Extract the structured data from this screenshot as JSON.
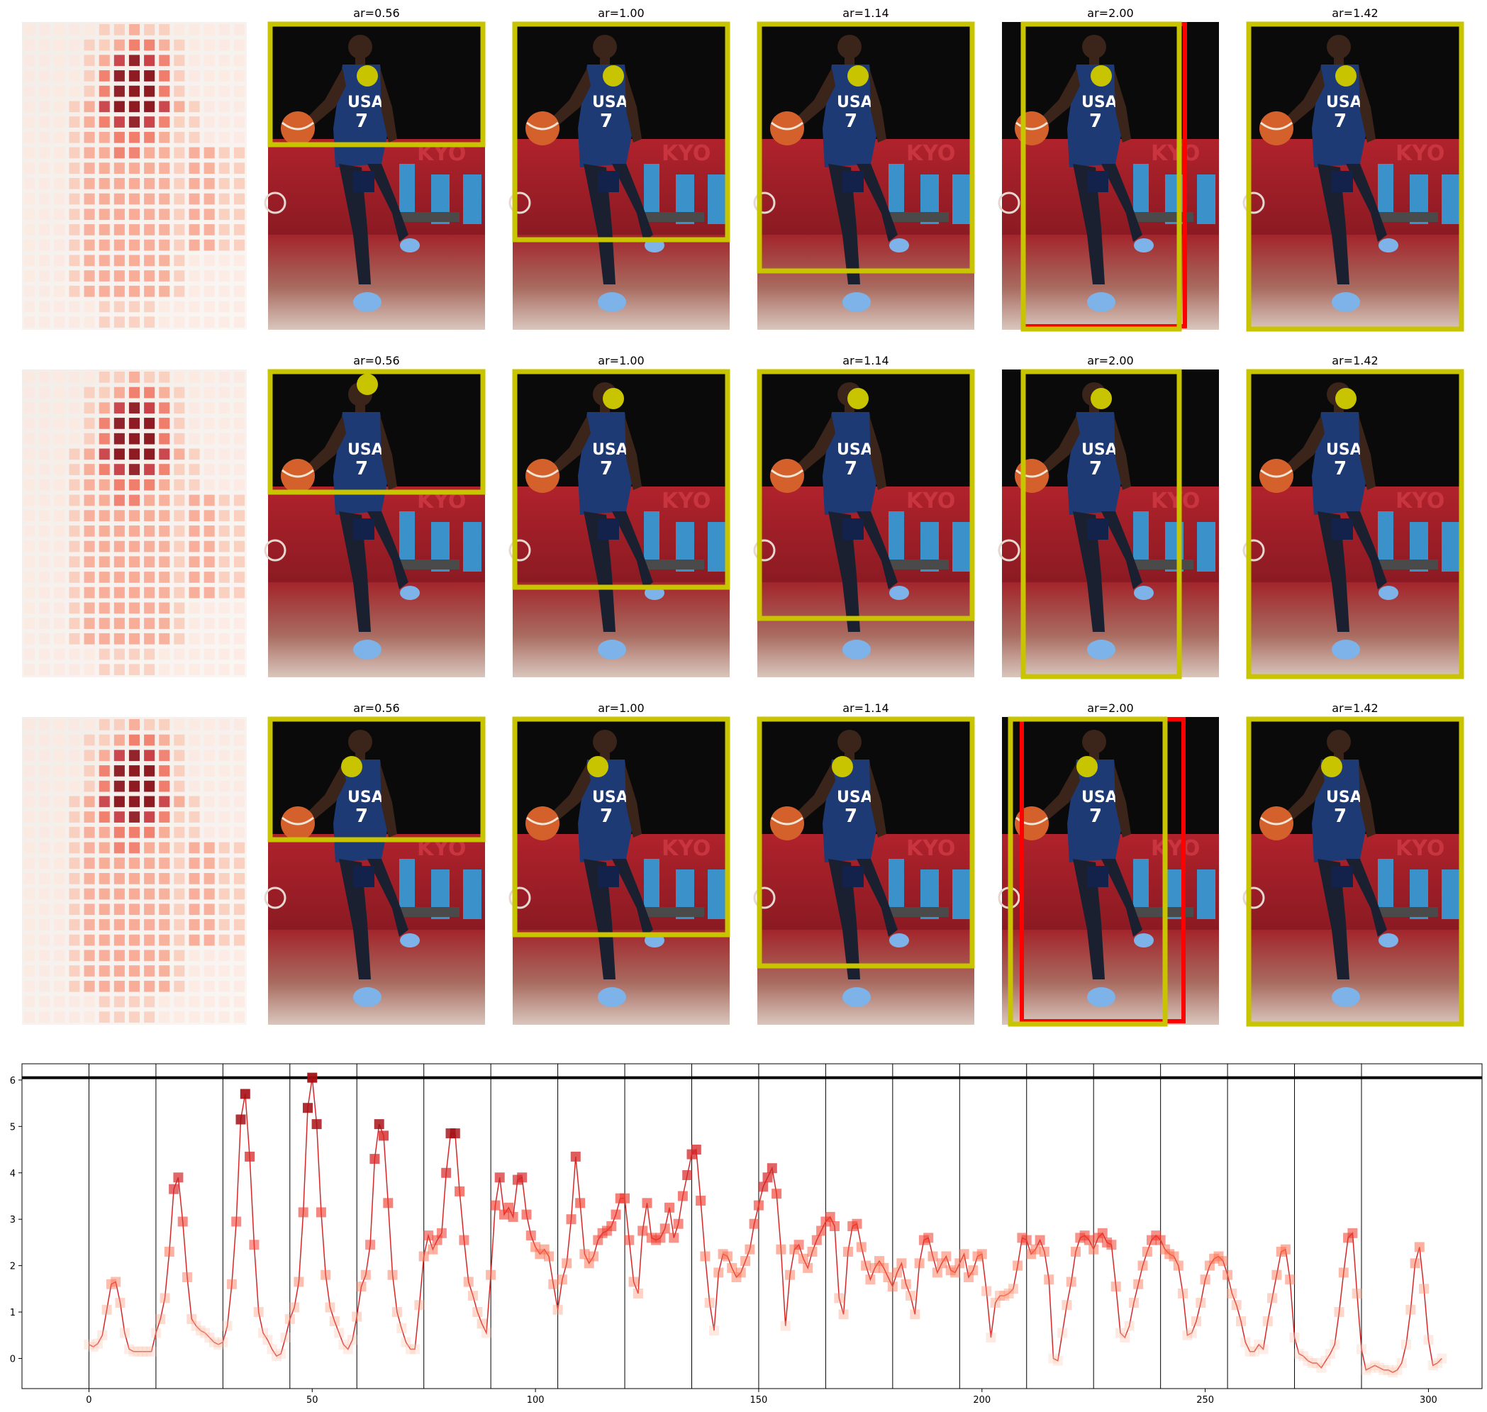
{
  "colors": {
    "box_yellow": "#c8c400",
    "box_red": "#ff0000",
    "line_red": "#d62728",
    "frame": "#000000"
  },
  "panels": {
    "rows": [
      {
        "heatmap": "attention-heatmap",
        "crops": [
          {
            "title": "ar=0.56",
            "box": "yellow"
          },
          {
            "title": "ar=1.00",
            "box": "yellow"
          },
          {
            "title": "ar=1.14",
            "box": "yellow"
          },
          {
            "title": "ar=2.00",
            "box": "yellow+red"
          },
          {
            "title": "ar=1.42",
            "box": "yellow"
          }
        ]
      },
      {
        "heatmap": "attention-heatmap",
        "crops": [
          {
            "title": "ar=0.56",
            "box": "yellow"
          },
          {
            "title": "ar=1.00",
            "box": "yellow"
          },
          {
            "title": "ar=1.14",
            "box": "yellow"
          },
          {
            "title": "ar=2.00",
            "box": "yellow"
          },
          {
            "title": "ar=1.42",
            "box": "yellow"
          }
        ]
      },
      {
        "heatmap": "attention-heatmap",
        "crops": [
          {
            "title": "ar=0.56",
            "box": "yellow"
          },
          {
            "title": "ar=1.00",
            "box": "yellow"
          },
          {
            "title": "ar=1.14",
            "box": "yellow"
          },
          {
            "title": "ar=2.00",
            "box": "yellow+red"
          },
          {
            "title": "ar=1.42",
            "box": "yellow"
          }
        ]
      }
    ]
  },
  "chart_data": {
    "type": "line",
    "title": "",
    "xlabel": "",
    "ylabel": "",
    "xlim": [
      -15,
      312
    ],
    "ylim": [
      -0.65,
      6.35
    ],
    "xticks": [
      0,
      50,
      100,
      150,
      200,
      250,
      300
    ],
    "yticks": [
      0,
      1,
      2,
      3,
      4,
      5,
      6
    ],
    "hline": 6.05,
    "vlines": [
      0,
      15,
      30,
      45,
      60,
      75,
      90,
      105,
      120,
      135,
      150,
      165,
      180,
      195,
      210,
      225,
      240,
      255,
      270,
      285
    ],
    "marker": "square",
    "grid": false,
    "series": [
      {
        "values": [
          0.3,
          0.25,
          0.32,
          0.5,
          1.05,
          1.6,
          1.65,
          1.2,
          0.55,
          0.2,
          0.15,
          0.15,
          0.15,
          0.15,
          0.15,
          0.55,
          0.85,
          1.3,
          2.3,
          3.65,
          3.9,
          2.95,
          1.75,
          0.85,
          0.7,
          0.6,
          0.55,
          0.45,
          0.35,
          0.3,
          0.35,
          0.7,
          1.6,
          2.95,
          5.15,
          5.7,
          4.35,
          2.45,
          1.0,
          0.55,
          0.4,
          0.2,
          0.05,
          0.1,
          0.45,
          0.85,
          1.1,
          1.65,
          3.15,
          5.4,
          6.05,
          5.05,
          3.15,
          1.8,
          1.1,
          0.8,
          0.55,
          0.3,
          0.2,
          0.4,
          0.9,
          1.55,
          1.8,
          2.45,
          4.3,
          5.05,
          4.8,
          3.35,
          1.8,
          1.0,
          0.65,
          0.35,
          0.2,
          0.2,
          1.15,
          2.2,
          2.65,
          2.35,
          2.55,
          2.7,
          4.0,
          4.85,
          4.85,
          3.6,
          2.55,
          1.65,
          1.35,
          1.0,
          0.75,
          0.55,
          1.8,
          3.3,
          3.9,
          3.1,
          3.25,
          3.05,
          3.85,
          3.9,
          3.1,
          2.65,
          2.4,
          2.25,
          2.35,
          2.2,
          1.6,
          1.05,
          1.7,
          2.05,
          3.0,
          4.35,
          3.35,
          2.25,
          2.05,
          2.2,
          2.55,
          2.7,
          2.75,
          2.85,
          3.1,
          3.45,
          3.45,
          2.55,
          1.65,
          1.4,
          2.75,
          3.35,
          2.6,
          2.55,
          2.6,
          2.8,
          3.25,
          2.6,
          2.9,
          3.5,
          3.95,
          4.4,
          4.5,
          3.4,
          2.2,
          1.2,
          0.6,
          1.85,
          2.25,
          2.2,
          1.95,
          1.75,
          1.85,
          2.1,
          2.35,
          2.9,
          3.3,
          3.7,
          3.9,
          4.1,
          3.55,
          2.35,
          0.7,
          1.8,
          2.35,
          2.45,
          2.15,
          1.95,
          2.3,
          2.55,
          2.75,
          2.95,
          3.05,
          2.85,
          1.3,
          0.95,
          2.3,
          2.85,
          2.9,
          2.4,
          2.0,
          1.7,
          1.95,
          2.1,
          1.95,
          1.75,
          1.55,
          1.85,
          2.05,
          1.6,
          1.35,
          0.95,
          2.05,
          2.55,
          2.6,
          2.2,
          1.85,
          2.05,
          2.2,
          1.9,
          1.85,
          2.05,
          2.25,
          1.75,
          1.9,
          2.2,
          2.25,
          1.45,
          0.45,
          1.2,
          1.35,
          1.35,
          1.4,
          1.5,
          2.0,
          2.6,
          2.55,
          2.25,
          2.35,
          2.55,
          2.3,
          1.7,
          0.0,
          -0.05,
          0.55,
          1.15,
          1.65,
          2.3,
          2.6,
          2.65,
          2.55,
          2.35,
          2.6,
          2.7,
          2.5,
          2.45,
          1.55,
          0.55,
          0.45,
          0.7,
          1.2,
          1.6,
          2.0,
          2.3,
          2.55,
          2.65,
          2.55,
          2.35,
          2.25,
          2.2,
          2.0,
          1.4,
          0.5,
          0.55,
          0.8,
          1.2,
          1.7,
          2.0,
          2.15,
          2.2,
          2.1,
          1.8,
          1.4,
          1.15,
          0.8,
          0.35,
          0.15,
          0.15,
          0.3,
          0.2,
          0.8,
          1.3,
          1.8,
          2.3,
          2.35,
          1.7,
          0.45,
          0.1,
          0.05,
          -0.05,
          -0.1,
          -0.1,
          -0.2,
          -0.05,
          0.1,
          0.3,
          1.0,
          1.85,
          2.6,
          2.7,
          1.4,
          0.2,
          -0.25,
          -0.2,
          -0.15,
          -0.2,
          -0.25,
          -0.25,
          -0.3,
          -0.25,
          -0.1,
          0.3,
          1.05,
          2.05,
          2.4,
          1.5,
          0.4,
          -0.15,
          -0.1,
          0.0
        ]
      }
    ]
  }
}
